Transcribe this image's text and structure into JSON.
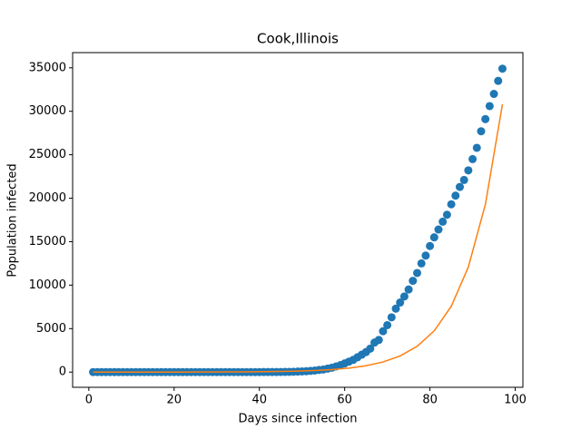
{
  "chart_data": {
    "type": "scatter",
    "title": "Cook,Illinois",
    "x_label": "Days since infection",
    "y_label": "Population infected",
    "xlim": [
      -3.8,
      101.8
    ],
    "xticks": [
      0,
      20,
      40,
      60,
      80,
      100
    ],
    "ylim": [
      -1750,
      36750
    ],
    "yticks": [
      0,
      5000,
      10000,
      15000,
      20000,
      25000,
      30000,
      35000
    ],
    "series": [
      {
        "type": "scatter",
        "color": "#1f77b4",
        "x": [
          1,
          2,
          3,
          4,
          5,
          6,
          7,
          8,
          9,
          10,
          11,
          12,
          13,
          14,
          15,
          16,
          17,
          18,
          19,
          20,
          21,
          22,
          23,
          24,
          25,
          26,
          27,
          28,
          29,
          30,
          31,
          32,
          33,
          34,
          35,
          36,
          37,
          38,
          39,
          40,
          41,
          42,
          43,
          44,
          45,
          46,
          47,
          48,
          49,
          50,
          51,
          52,
          53,
          54,
          55,
          56,
          57,
          58,
          59,
          60,
          61,
          62,
          63,
          64,
          65,
          66,
          67,
          68,
          69,
          70,
          71,
          72,
          73,
          74,
          75,
          76,
          77,
          78,
          79,
          80,
          81,
          82,
          83,
          84,
          85,
          86,
          87,
          88,
          89,
          90,
          91,
          92,
          93,
          94,
          95,
          96,
          97
        ],
        "values": [
          1,
          1,
          1,
          1,
          1,
          1,
          1,
          2,
          2,
          2,
          3,
          3,
          3,
          3,
          3,
          3,
          3,
          3,
          3,
          3,
          3,
          3,
          3,
          3,
          3,
          3,
          3,
          3,
          3,
          3,
          3,
          3,
          3,
          4,
          4,
          4,
          4,
          4,
          4,
          4,
          5,
          6,
          7,
          10,
          15,
          20,
          30,
          40,
          60,
          80,
          100,
          140,
          180,
          250,
          300,
          400,
          500,
          650,
          800,
          1000,
          1200,
          1400,
          1700,
          2000,
          2300,
          2700,
          3400,
          3700,
          4700,
          5400,
          6300,
          7300,
          8000,
          8700,
          9500,
          10500,
          11400,
          12500,
          13400,
          14500,
          15500,
          16400,
          17300,
          18100,
          19300,
          20300,
          21300,
          22100,
          23200,
          24500,
          25800,
          27700,
          29100,
          30600,
          32000,
          33500,
          34900
        ]
      },
      {
        "type": "line",
        "color": "#ff7f0e",
        "x": [
          1,
          5,
          9,
          13,
          17,
          21,
          25,
          29,
          33,
          37,
          41,
          45,
          49,
          53,
          57,
          61,
          65,
          69,
          73,
          77,
          81,
          85,
          89,
          93,
          97
        ],
        "values": [
          0,
          1,
          1,
          2,
          3,
          4,
          7,
          11,
          17,
          28,
          44,
          70,
          112,
          179,
          286,
          457,
          729,
          1164,
          1859,
          2968,
          4739,
          7566,
          12081,
          19290,
          30800
        ]
      }
    ]
  }
}
